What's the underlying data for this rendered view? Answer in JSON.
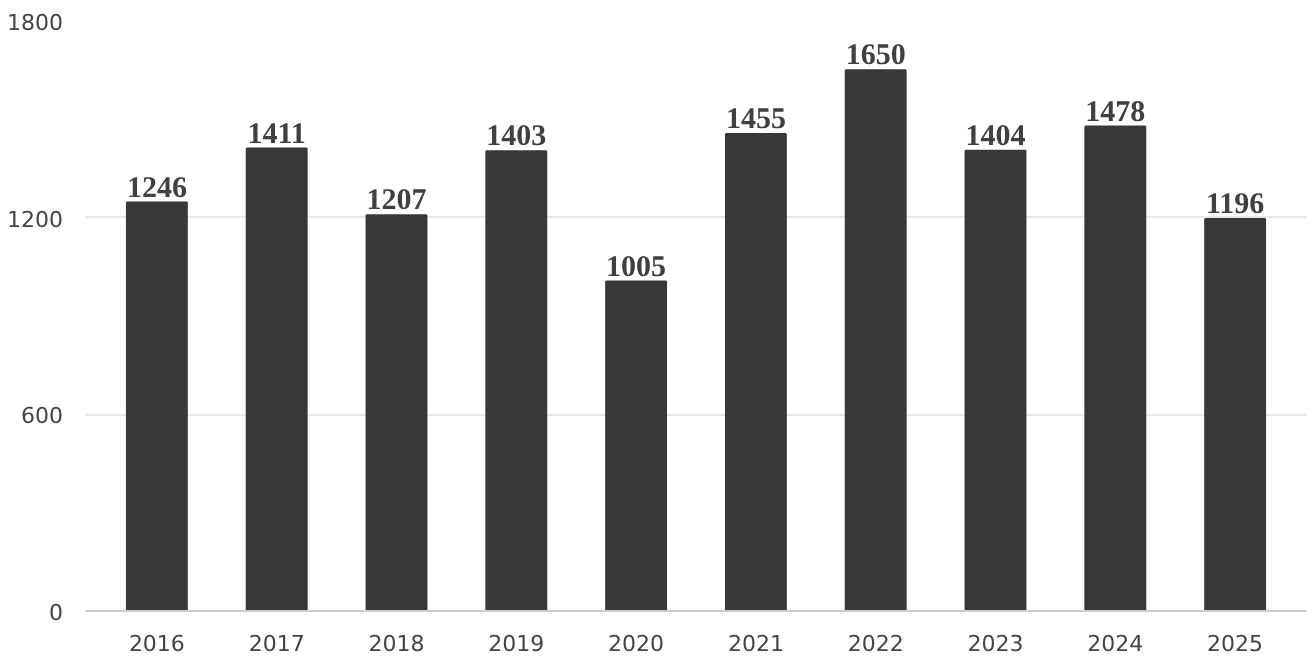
{
  "chart_data": {
    "type": "bar",
    "categories": [
      "2016",
      "2017",
      "2018",
      "2019",
      "2020",
      "2021",
      "2022",
      "2023",
      "2024",
      "2025"
    ],
    "values": [
      1246,
      1411,
      1207,
      1403,
      1005,
      1455,
      1650,
      1404,
      1478,
      1196
    ],
    "color": "#383838",
    "ylim": [
      0,
      1800
    ],
    "yticks": [
      0,
      600,
      1200,
      1800
    ],
    "grid": "y",
    "data_labels": true
  }
}
